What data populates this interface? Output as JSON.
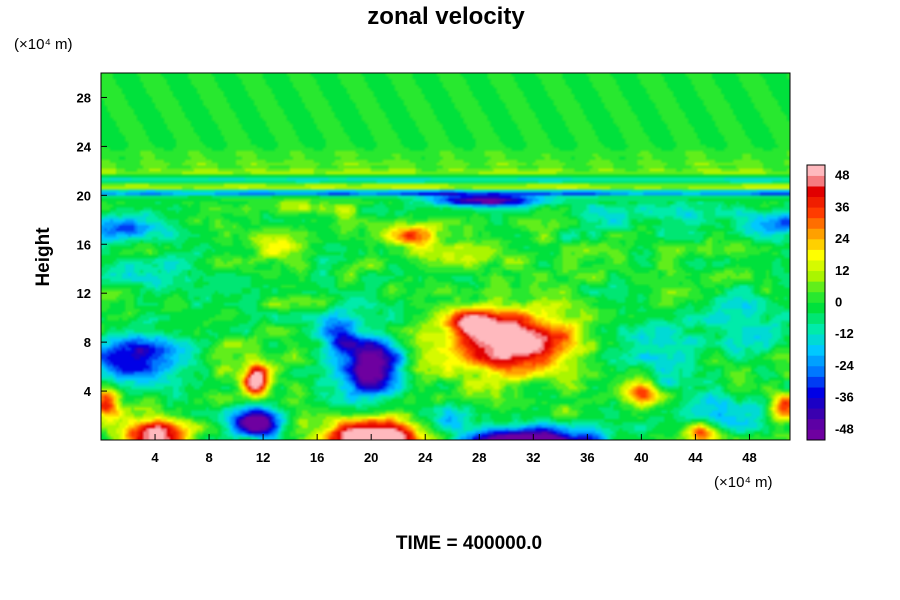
{
  "chart_data": {
    "type": "heatmap",
    "title": "zonal velocity",
    "ylabel": "Height",
    "xlabel": "",
    "x_unit": "(×10⁴ m)",
    "y_unit": "(×10⁴ m)",
    "xlim": [
      0,
      51
    ],
    "ylim": [
      0,
      30
    ],
    "x_ticks": [
      4,
      8,
      12,
      16,
      20,
      24,
      28,
      32,
      36,
      40,
      44,
      48
    ],
    "y_ticks": [
      4,
      8,
      12,
      16,
      20,
      24,
      28
    ],
    "colorbar": {
      "min": -48,
      "max": 48,
      "step": 4,
      "tick_labels": [
        48,
        36,
        24,
        12,
        0,
        -12,
        -24,
        -36,
        -48
      ]
    },
    "background_value": 0,
    "features": [
      {
        "x": 30.5,
        "y": 7.8,
        "sx": 4.6,
        "sy": 2.3,
        "value": 62
      },
      {
        "x": 27.5,
        "y": 9.8,
        "sx": 2.4,
        "sy": 1.2,
        "value": 30
      },
      {
        "x": 40.0,
        "y": 4.0,
        "sx": 1.7,
        "sy": 1.0,
        "value": 34
      },
      {
        "x": 20.0,
        "y": 0.2,
        "sx": 3.2,
        "sy": 1.6,
        "value": 72
      },
      {
        "x": 4.0,
        "y": 0.2,
        "sx": 2.4,
        "sy": 1.3,
        "value": 55
      },
      {
        "x": 11.5,
        "y": 5.0,
        "sx": 1.0,
        "sy": 1.3,
        "value": 60
      },
      {
        "x": 44.5,
        "y": 0.6,
        "sx": 1.3,
        "sy": 0.9,
        "value": 38
      },
      {
        "x": 0.4,
        "y": 3.0,
        "sx": 1.0,
        "sy": 1.2,
        "value": 38
      },
      {
        "x": 50.5,
        "y": 2.6,
        "sx": 1.1,
        "sy": 1.1,
        "value": 36
      },
      {
        "x": 23.0,
        "y": 16.8,
        "sx": 1.8,
        "sy": 0.9,
        "value": 30
      },
      {
        "x": 13.5,
        "y": 16.2,
        "sx": 2.2,
        "sy": 1.4,
        "value": 18
      },
      {
        "x": 14.5,
        "y": 19.0,
        "sx": 3.0,
        "sy": 0.6,
        "value": 14
      },
      {
        "x": 25.5,
        "y": 15.5,
        "sx": 3.0,
        "sy": 1.0,
        "value": 10
      },
      {
        "x": 20.0,
        "y": 6.0,
        "sx": 2.2,
        "sy": 2.6,
        "value": -52
      },
      {
        "x": 17.5,
        "y": 8.5,
        "sx": 1.5,
        "sy": 1.8,
        "value": -28
      },
      {
        "x": 2.5,
        "y": 7.0,
        "sx": 2.8,
        "sy": 1.8,
        "value": -42
      },
      {
        "x": 11.5,
        "y": 1.5,
        "sx": 1.7,
        "sy": 1.3,
        "value": -56
      },
      {
        "x": 32.0,
        "y": -0.6,
        "sx": 4.5,
        "sy": 1.3,
        "value": -92
      },
      {
        "x": 26.0,
        "y": 2.0,
        "sx": 2.0,
        "sy": 1.3,
        "value": -18
      },
      {
        "x": 1.8,
        "y": 17.4,
        "sx": 2.6,
        "sy": 1.1,
        "value": -34
      },
      {
        "x": 49.5,
        "y": 17.6,
        "sx": 2.5,
        "sy": 1.2,
        "value": -30
      },
      {
        "x": 28.5,
        "y": 19.6,
        "sx": 4.0,
        "sy": 0.45,
        "value": -50
      },
      {
        "x": 40.5,
        "y": 18.5,
        "sx": 6.0,
        "sy": 1.2,
        "value": -12
      },
      {
        "x": 41.0,
        "y": 8.5,
        "sx": 5.0,
        "sy": 2.0,
        "value": -14
      },
      {
        "x": 41.5,
        "y": 5.0,
        "sx": 1.5,
        "sy": 1.5,
        "value": -12
      },
      {
        "x": 46.5,
        "y": 2.2,
        "sx": 2.8,
        "sy": 1.4,
        "value": -20
      },
      {
        "x": 4.5,
        "y": 13.5,
        "sx": 4.0,
        "sy": 1.5,
        "value": -10
      },
      {
        "x": 48.0,
        "y": 10.0,
        "sx": 3.0,
        "sy": 2.0,
        "value": -14
      }
    ],
    "bands": [
      {
        "y": 20.2,
        "width": 0.25,
        "value": -34
      },
      {
        "y": 20.7,
        "width": 0.25,
        "value": 18
      },
      {
        "y": 21.3,
        "width": 0.3,
        "value": -16
      },
      {
        "y": 21.9,
        "width": 0.3,
        "value": 12
      },
      {
        "y": 22.6,
        "width": 0.35,
        "value": 7
      },
      {
        "y": 23.4,
        "width": 0.4,
        "value": 4
      }
    ]
  },
  "footer": {
    "time_label": "TIME = 400000.0"
  }
}
